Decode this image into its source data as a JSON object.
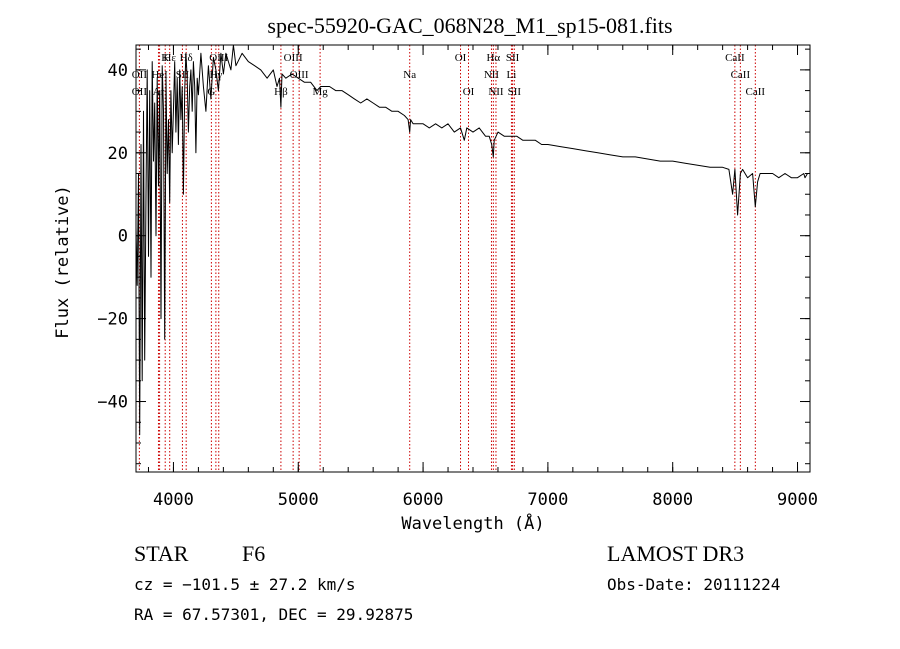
{
  "chart_data": {
    "type": "line",
    "title": "spec-55920-GAC_068N28_M1_sp15-081.fits",
    "xlabel": "Wavelength (Å)",
    "ylabel": "Flux (relative)",
    "xlim": [
      3700,
      9100
    ],
    "ylim": [
      -57,
      46
    ],
    "x_ticks": [
      4000,
      5000,
      6000,
      7000,
      8000,
      9000
    ],
    "x_tick_labels": [
      "4000",
      "5000",
      "6000",
      "7000",
      "8000",
      "9000"
    ],
    "y_ticks": [
      -40,
      -20,
      0,
      20,
      40
    ],
    "y_tick_labels": [
      "−40",
      "−20",
      "0",
      "20",
      "40"
    ],
    "x_minor_step": 200,
    "y_minor_step": 5,
    "series": [
      {
        "name": "flux",
        "x": [
          3700,
          3710,
          3720,
          3730,
          3740,
          3750,
          3760,
          3770,
          3780,
          3790,
          3800,
          3810,
          3820,
          3830,
          3840,
          3850,
          3860,
          3870,
          3880,
          3890,
          3900,
          3910,
          3920,
          3930,
          3940,
          3950,
          3960,
          3970,
          3980,
          3990,
          4000,
          4010,
          4020,
          4030,
          4040,
          4050,
          4060,
          4070,
          4080,
          4090,
          4100,
          4110,
          4120,
          4130,
          4140,
          4150,
          4160,
          4170,
          4180,
          4190,
          4200,
          4220,
          4240,
          4260,
          4280,
          4300,
          4320,
          4340,
          4360,
          4380,
          4400,
          4420,
          4440,
          4460,
          4480,
          4500,
          4550,
          4600,
          4650,
          4700,
          4750,
          4800,
          4830,
          4850,
          4861,
          4870,
          4900,
          4950,
          5000,
          5050,
          5100,
          5150,
          5180,
          5200,
          5250,
          5300,
          5350,
          5400,
          5450,
          5500,
          5550,
          5600,
          5650,
          5700,
          5750,
          5800,
          5850,
          5880,
          5893,
          5900,
          5920,
          5950,
          6000,
          6050,
          6100,
          6150,
          6200,
          6250,
          6300,
          6330,
          6350,
          6400,
          6450,
          6500,
          6530,
          6550,
          6563,
          6570,
          6600,
          6650,
          6700,
          6750,
          6800,
          6850,
          6900,
          6950,
          7000,
          7100,
          7200,
          7300,
          7400,
          7500,
          7600,
          7700,
          7800,
          7900,
          8000,
          8100,
          8200,
          8300,
          8400,
          8450,
          8480,
          8498,
          8520,
          8542,
          8560,
          8600,
          8640,
          8662,
          8680,
          8700,
          8750,
          8800,
          8850,
          8900,
          8950,
          9000,
          9050,
          9060,
          9080,
          9100
        ],
        "y": [
          2,
          -12,
          15,
          -48,
          22,
          -35,
          30,
          -30,
          10,
          40,
          -5,
          35,
          -10,
          42,
          18,
          32,
          0,
          38,
          12,
          35,
          -20,
          41,
          30,
          -25,
          38,
          15,
          28,
          8,
          35,
          20,
          30,
          42,
          25,
          38,
          22,
          40,
          28,
          36,
          10,
          35,
          44,
          38,
          25,
          36,
          40,
          30,
          42,
          36,
          20,
          38,
          34,
          44,
          36,
          30,
          41,
          33,
          43,
          40,
          35,
          44,
          39,
          44,
          42,
          40,
          46,
          41,
          44,
          42,
          41,
          40,
          38,
          40,
          36,
          38,
          31,
          39,
          38,
          39,
          38,
          37,
          37,
          35,
          36,
          36,
          36,
          35,
          35,
          34,
          33,
          32,
          33,
          32,
          31,
          31,
          30,
          30,
          29,
          28,
          25,
          28,
          27,
          27,
          27,
          26,
          27,
          26,
          27,
          25,
          26,
          23,
          26,
          25,
          26,
          24,
          24,
          22,
          19,
          23,
          25,
          24,
          24,
          24,
          23,
          23,
          23,
          22,
          22,
          21.5,
          21,
          20.5,
          20,
          19.5,
          19,
          19,
          18.5,
          18,
          18,
          17.5,
          17,
          16.5,
          16.5,
          16,
          10,
          16,
          5,
          15,
          16,
          14,
          15,
          7,
          13,
          15,
          15,
          15,
          14,
          15,
          14,
          14,
          15,
          14,
          15,
          15
        ]
      }
    ],
    "line_markers": [
      {
        "label": "Hε",
        "wavelength": 3970,
        "row": 0
      },
      {
        "label": "K",
        "wavelength": 3934,
        "row": 0
      },
      {
        "label": "Hδ",
        "wavelength": 4102,
        "row": 0
      },
      {
        "label": "OII",
        "wavelength": 3727,
        "row": 2
      },
      {
        "label": "OIII",
        "wavelength": 4363,
        "row": 0
      },
      {
        "label": "OIII",
        "wavelength": 4959,
        "row": 0
      },
      {
        "label": "OIII",
        "wavelength": 5007,
        "row": 1
      },
      {
        "label": "OI",
        "wavelength": 6300,
        "row": 0
      },
      {
        "label": "OI",
        "wavelength": 6364,
        "row": 2
      },
      {
        "label": "Hα",
        "wavelength": 6563,
        "row": 0
      },
      {
        "label": "SII",
        "wavelength": 6717,
        "row": 0
      },
      {
        "label": "NII",
        "wavelength": 6548,
        "row": 1
      },
      {
        "label": "Li",
        "wavelength": 6708,
        "row": 1
      },
      {
        "label": "NII",
        "wavelength": 6584,
        "row": 2
      },
      {
        "label": "SII",
        "wavelength": 6731,
        "row": 2
      },
      {
        "label": "CaII",
        "wavelength": 8498,
        "row": 0
      },
      {
        "label": "CaII",
        "wavelength": 8542,
        "row": 1
      },
      {
        "label": "CaII",
        "wavelength": 8662,
        "row": 2
      },
      {
        "label": "OII",
        "wavelength": 3727,
        "row": 1
      },
      {
        "label": "HeI",
        "wavelength": 3889,
        "row": 1
      },
      {
        "label": "SII",
        "wavelength": 4072,
        "row": 1
      },
      {
        "label": "Hγ",
        "wavelength": 4340,
        "row": 1
      },
      {
        "label": "Hβ",
        "wavelength": 4861,
        "row": 2
      },
      {
        "label": "Mg",
        "wavelength": 5175,
        "row": 2
      },
      {
        "label": "Na",
        "wavelength": 5893,
        "row": 1
      },
      {
        "label": "Ar",
        "wavelength": 3880,
        "row": 2
      },
      {
        "label": "G",
        "wavelength": 4304,
        "row": 2
      }
    ]
  },
  "info": {
    "object_class": "STAR",
    "subclass": "F6",
    "survey": "LAMOST DR3",
    "cz": "cz = −101.5 ± 27.2 km/s",
    "obs_date": "Obs-Date: 20111224",
    "coords": "RA =  67.57301, DEC =  29.92875"
  }
}
